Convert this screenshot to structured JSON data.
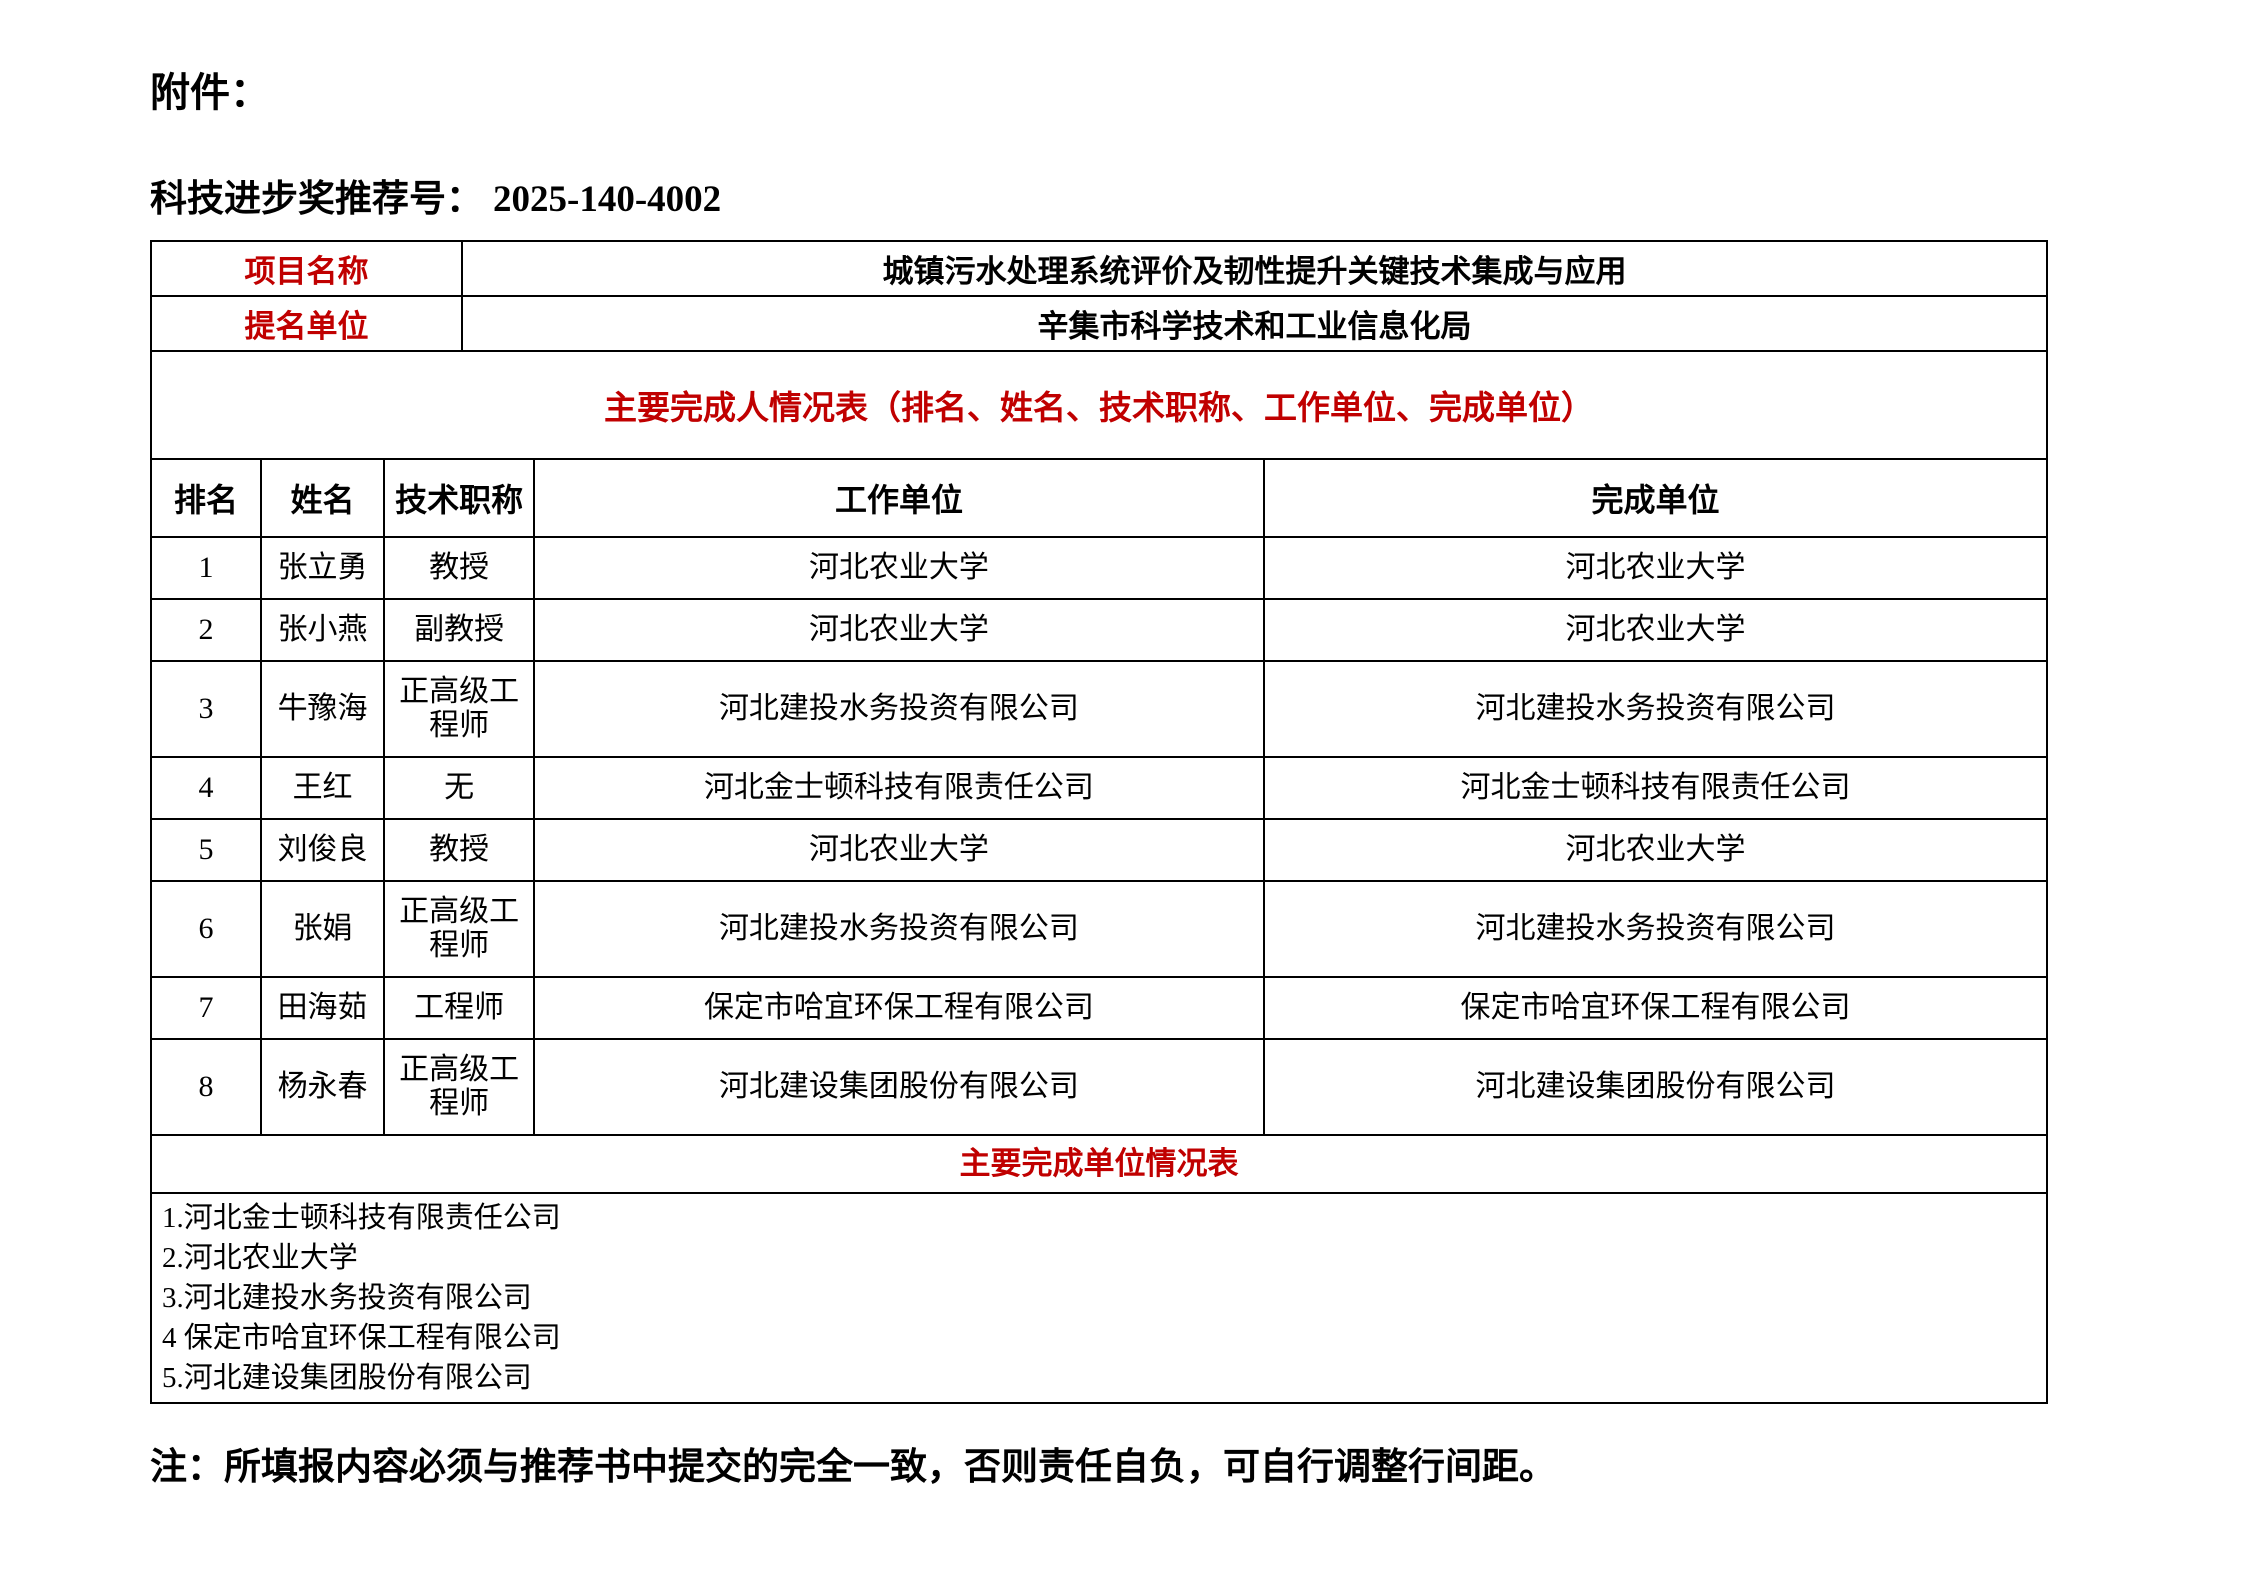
{
  "page": {
    "attachment_label": "附件：",
    "recommendation_label": "科技进步奖推荐号：",
    "recommendation_number": "2025-140-4002",
    "note": "注：所填报内容必须与推荐书中提交的完全一致，否则责任自负，可自行调整行间距。"
  },
  "info_rows": [
    {
      "label": "项目名称",
      "value": "城镇污水处理系统评价及韧性提升关键技术集成与应用"
    },
    {
      "label": "提名单位",
      "value": "辛集市科学技术和工业信息化局"
    }
  ],
  "person_table": {
    "title": "主要完成人情况表（排名、姓名、技术职称、工作单位、完成单位）",
    "headers": [
      "排名",
      "姓名",
      "技术职称",
      "工作单位",
      "完成单位"
    ],
    "rows": [
      [
        "1",
        "张立勇",
        "教授",
        "河北农业大学",
        "河北农业大学"
      ],
      [
        "2",
        "张小燕",
        "副教授",
        "河北农业大学",
        "河北农业大学"
      ],
      [
        "3",
        "牛豫海",
        "正高级工程师",
        "河北建投水务投资有限公司",
        "河北建投水务投资有限公司"
      ],
      [
        "4",
        "王红",
        "无",
        "河北金士顿科技有限责任公司",
        "河北金士顿科技有限责任公司"
      ],
      [
        "5",
        "刘俊良",
        "教授",
        "河北农业大学",
        "河北农业大学"
      ],
      [
        "6",
        "张娟",
        "正高级工程师",
        "河北建投水务投资有限公司",
        "河北建投水务投资有限公司"
      ],
      [
        "7",
        "田海茹",
        "工程师",
        "保定市哈宜环保工程有限公司",
        "保定市哈宜环保工程有限公司"
      ],
      [
        "8",
        "杨永春",
        "正高级工程师",
        "河北建设集团股份有限公司",
        "河北建设集团股份有限公司"
      ]
    ]
  },
  "unit_table": {
    "title": "主要完成单位情况表",
    "units": [
      "1.河北金士顿科技有限责任公司",
      "2.河北农业大学",
      "3.河北建投水务投资有限公司",
      "4 保定市哈宜环保工程有限公司",
      "5.河北建设集团股份有限公司"
    ]
  },
  "colors": {
    "accent_red": "#C00000",
    "text": "#000000",
    "border": "#000000",
    "background": "#FFFFFF"
  }
}
